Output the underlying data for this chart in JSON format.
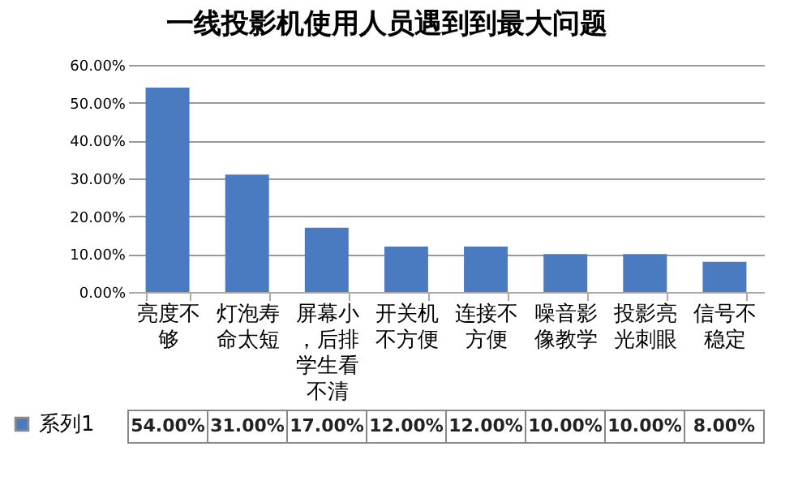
{
  "chart_data": {
    "type": "bar",
    "title": "一线投影机使用人员遇到到最大问题",
    "categories": [
      "亮度不够",
      "灯泡寿命太短",
      "屏幕小，后排学生看不清",
      "开关机不方便",
      "连接不方便",
      "噪音影像教学",
      "投影亮光刺眼",
      "信号不稳定"
    ],
    "series": [
      {
        "name": "系列1",
        "color": "#4a7bc0",
        "values": [
          54,
          31,
          17,
          12,
          12,
          10,
          10,
          8
        ],
        "value_labels": [
          "54.00%",
          "31.00%",
          "17.00%",
          "12.00%",
          "12.00%",
          "10.00%",
          "10.00%",
          "8.00%"
        ]
      }
    ],
    "ylim": [
      0,
      60
    ],
    "yticks": [
      {
        "value": 0,
        "label": "0.00%"
      },
      {
        "value": 10,
        "label": "10.00%"
      },
      {
        "value": 20,
        "label": "20.00%"
      },
      {
        "value": 30,
        "label": "30.00%"
      },
      {
        "value": 40,
        "label": "40.00%"
      },
      {
        "value": 50,
        "label": "50.00%"
      },
      {
        "value": 60,
        "label": "60.00%"
      }
    ],
    "grid": "y",
    "legend": "bottom left"
  }
}
